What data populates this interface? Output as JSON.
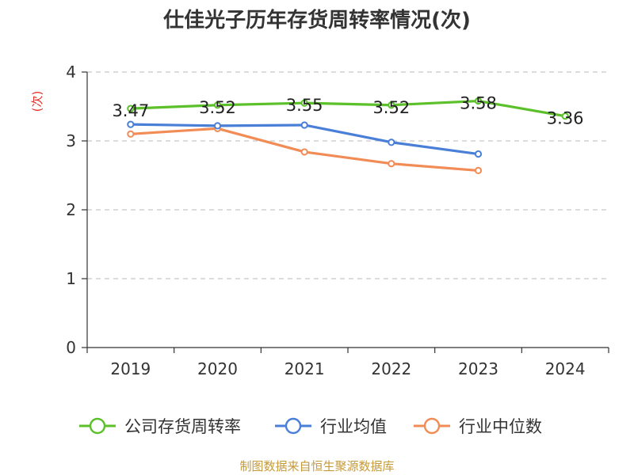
{
  "chart_data": {
    "type": "line",
    "title": "仕佳光子历年存货周转率情况(次)",
    "ylabel": "(次)",
    "xlabel": "",
    "categories": [
      "2019",
      "2020",
      "2021",
      "2022",
      "2023",
      "2024"
    ],
    "ylim": [
      0,
      4
    ],
    "yticks": [
      "0",
      "1",
      "2",
      "3",
      "4"
    ],
    "grid": "horizontal dashed",
    "legend_position": "bottom",
    "series": [
      {
        "name": "公司存货周转率",
        "color": "#5cc02a",
        "values": [
          3.47,
          3.52,
          3.55,
          3.52,
          3.58,
          3.36
        ],
        "labels": [
          "3.47",
          "3.52",
          "3.55",
          "3.52",
          "3.58",
          "3.36"
        ]
      },
      {
        "name": "行业均值",
        "color": "#4a7fd8",
        "values": [
          3.24,
          3.22,
          3.23,
          2.98,
          2.81,
          null
        ]
      },
      {
        "name": "行业中位数",
        "color": "#f28c56",
        "values": [
          3.1,
          3.18,
          2.84,
          2.67,
          2.57,
          null
        ]
      }
    ]
  },
  "source": "制图数据来自恒生聚源数据库"
}
